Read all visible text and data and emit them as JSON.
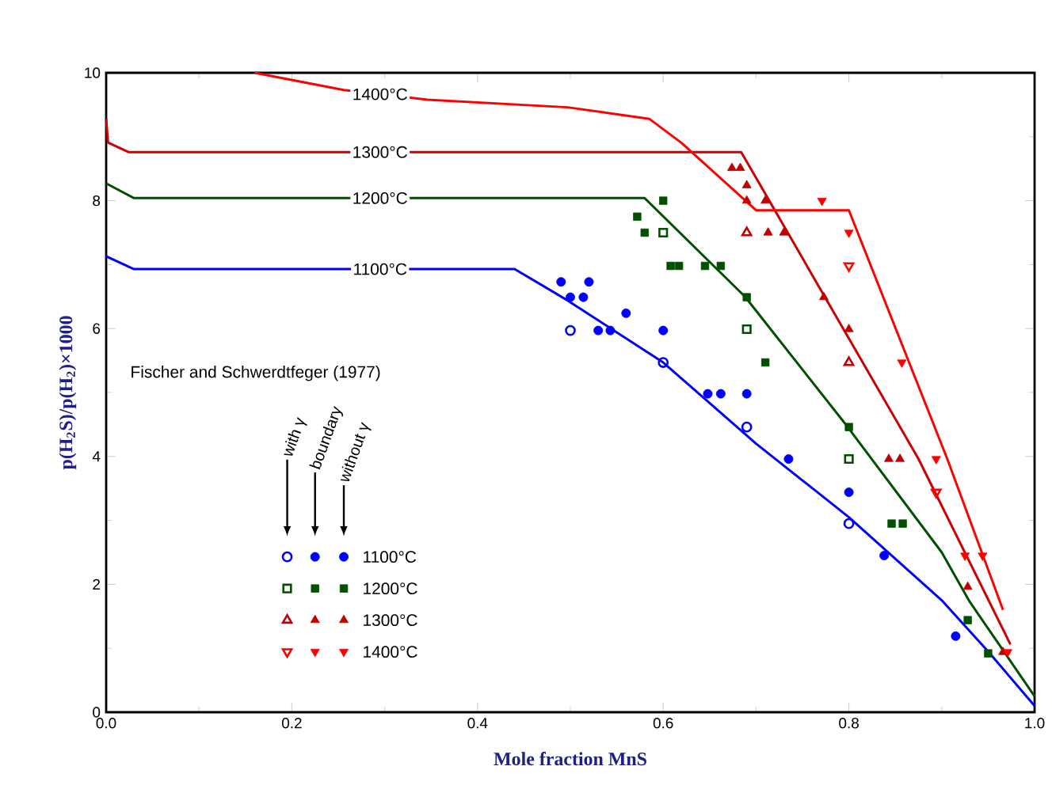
{
  "chart_data": {
    "type": "line",
    "xlabel": "Mole fraction MnS",
    "ylabel": "p(H$_{2}$S)/p(H$_{2}$)×1000",
    "xlim": [
      0,
      1
    ],
    "ylim": [
      0,
      10
    ],
    "xticks": [
      {
        "value": 0,
        "label": "0.0"
      },
      0.2,
      0.4,
      0.6,
      0.8,
      {
        "value": 1,
        "label": "1.0"
      }
    ],
    "yticks": [
      0,
      2,
      4,
      6,
      8,
      10
    ],
    "grid": false,
    "legend": "bottom left",
    "annotations": [
      "Fischer and Schwerdtfeger (1977)",
      "with γ",
      "boundary",
      "without γ"
    ],
    "series": [
      {
        "name": "1100°C",
        "color": "#0000ff",
        "x": [
          0,
          0.03,
          0.44,
          0.497,
          0.6,
          0.7,
          0.8,
          0.9,
          0.95,
          1.0
        ],
        "values": [
          7.13,
          6.93,
          6.93,
          6.44,
          5.47,
          4.2,
          3.05,
          1.75,
          0.95,
          0.1
        ]
      },
      {
        "name": "1200°C",
        "color": "#005000",
        "x": [
          0,
          0.03,
          0.58,
          0.688,
          0.795,
          0.9,
          0.93,
          1.0
        ],
        "values": [
          8.27,
          8.04,
          8.04,
          6.5,
          4.53,
          2.5,
          1.73,
          0.25
        ]
      },
      {
        "name": "1300°C",
        "color": "#cc0000",
        "x": [
          0,
          0.002,
          0.024,
          0.684,
          0.875,
          0.974
        ],
        "values": [
          9.28,
          8.91,
          8.76,
          8.76,
          3.96,
          1.06
        ]
      },
      {
        "name": "1400°C",
        "color": "#ff0000",
        "x": [
          0.16,
          0.256,
          0.346,
          0.497,
          0.585,
          0.62,
          0.7,
          0.8,
          0.906,
          0.966
        ],
        "values": [
          10,
          9.73,
          9.58,
          9.46,
          9.28,
          8.9,
          7.85,
          7.85,
          3.96,
          1.6
        ]
      },
      {
        "type": "scatter",
        "color": "#0000ff",
        "marker": "circle",
        "x": [
          0.5,
          0.6,
          0.69,
          0.8
        ],
        "values": [
          5.97,
          5.47,
          4.46,
          2.95
        ]
      },
      {
        "type": "scatter",
        "color": "#0000ff",
        "marker": "circle",
        "x": [
          0.49,
          0.52,
          0.56,
          0.838,
          0.915
        ],
        "values": [
          6.73,
          6.73,
          6.24,
          2.45,
          1.19
        ]
      },
      {
        "type": "scatter",
        "name": "1100°C",
        "color": "#0000ff",
        "marker": "circle",
        "x": [
          0.5,
          0.514,
          0.53,
          0.543,
          0.6,
          0.648,
          0.662,
          0.69,
          0.735,
          0.8
        ],
        "values": [
          6.49,
          6.49,
          5.97,
          5.97,
          5.97,
          4.98,
          4.98,
          4.98,
          3.96,
          3.44
        ]
      },
      {
        "type": "scatter",
        "color": "#005000",
        "marker": "square",
        "x": [
          0.6,
          0.69,
          0.8
        ],
        "values": [
          7.5,
          5.99,
          3.96
        ]
      },
      {
        "type": "scatter",
        "color": "#005000",
        "marker": "square",
        "x": [
          0.572,
          0.58,
          0.608,
          0.617,
          0.645,
          0.662,
          0.71,
          0.846,
          0.858,
          0.928,
          0.95
        ],
        "values": [
          7.75,
          7.5,
          6.98,
          6.98,
          6.98,
          6.98,
          5.47,
          2.95,
          2.95,
          1.44,
          0.92
        ]
      },
      {
        "type": "scatter",
        "name": "1200°C",
        "color": "#005000",
        "marker": "square",
        "x": [
          0.6,
          0.69,
          0.8
        ],
        "values": [
          8.0,
          6.49,
          4.46
        ]
      },
      {
        "type": "scatter",
        "color": "#c00000",
        "marker": "triangle",
        "x": [
          0.69,
          0.8
        ],
        "values": [
          7.5,
          5.47
        ]
      },
      {
        "type": "scatter",
        "color": "#c00000",
        "marker": "triangle",
        "x": [
          0.674,
          0.683,
          0.69,
          0.71,
          0.713,
          0.73,
          0.773,
          0.843,
          0.855,
          0.928,
          0.966
        ],
        "values": [
          8.51,
          8.51,
          8.24,
          8.0,
          7.5,
          7.5,
          6.49,
          3.96,
          3.96,
          1.96,
          0.94
        ]
      },
      {
        "type": "scatter",
        "name": "1300°C",
        "color": "#c00000",
        "marker": "triangle",
        "x": [
          0.69,
          0.8
        ],
        "values": [
          8.0,
          5.99
        ]
      },
      {
        "type": "scatter",
        "color": "#ff0000",
        "marker": "triangle-down",
        "x": [
          0.8,
          0.894
        ],
        "values": [
          6.98,
          3.44
        ]
      },
      {
        "type": "scatter",
        "color": "#ff0000",
        "marker": "triangle-down",
        "x": [
          0.771,
          0.857,
          0.925,
          0.944,
          0.971
        ],
        "values": [
          8.0,
          5.47,
          2.45,
          2.45,
          0.94
        ]
      },
      {
        "type": "scatter",
        "name": "1400°C",
        "color": "#ff0000",
        "marker": "triangle-down",
        "x": [
          0.8,
          0.894
        ],
        "values": [
          7.5,
          3.96
        ]
      }
    ]
  }
}
